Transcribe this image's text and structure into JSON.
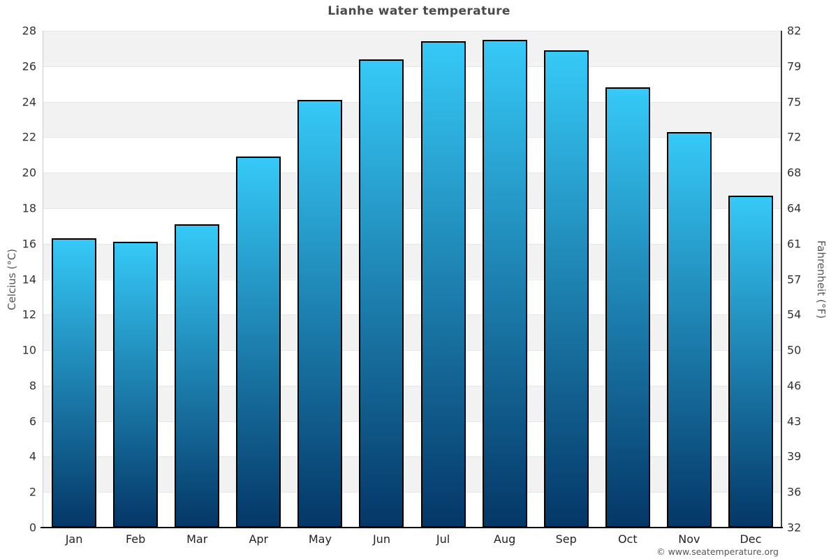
{
  "chart_data": {
    "type": "bar",
    "title": "Lianhe water temperature",
    "categories": [
      "Jan",
      "Feb",
      "Mar",
      "Apr",
      "May",
      "Jun",
      "Jul",
      "Aug",
      "Sep",
      "Oct",
      "Nov",
      "Dec"
    ],
    "values": [
      16.3,
      16.1,
      17.1,
      20.9,
      24.1,
      26.4,
      27.4,
      27.5,
      26.9,
      24.8,
      22.3,
      18.7
    ],
    "unit": "°C",
    "xlabel": "",
    "ylabel": "Celcius (°C)",
    "ylabel_right": "Fahrenheit (°F)",
    "ylim": [
      0,
      28
    ],
    "ytick_step": 2,
    "yticks_celsius": [
      0,
      2,
      4,
      6,
      8,
      10,
      12,
      14,
      16,
      18,
      20,
      22,
      24,
      26,
      28
    ],
    "yticks_fahrenheit_labels": [
      "32",
      "36",
      "39",
      "43",
      "46",
      "50",
      "54",
      "57",
      "61",
      "64",
      "68",
      "72",
      "75",
      "79",
      "82"
    ],
    "grid": "horizontal gridlines every 2°C with alternating gray/white background bands",
    "legend": false
  },
  "footer": {
    "copyright": "© www.seatemperature.org"
  },
  "colors": {
    "bar_gradient_top": "#36c9f7",
    "bar_gradient_bottom": "#043767",
    "bar_border": "#000000",
    "band_gray": "#f2f2f2",
    "band_white": "#ffffff",
    "gridline": "#e6e6e6",
    "left_axis_line": "#cccccc",
    "right_axis_line": "#3d3d3d",
    "bottom_axis_line": "#000000",
    "title_color": "#4a4a4a",
    "tick_label_color": "#333333",
    "axis_title_color": "#555555",
    "copyright_color": "#555555",
    "background": "#ffffff"
  }
}
